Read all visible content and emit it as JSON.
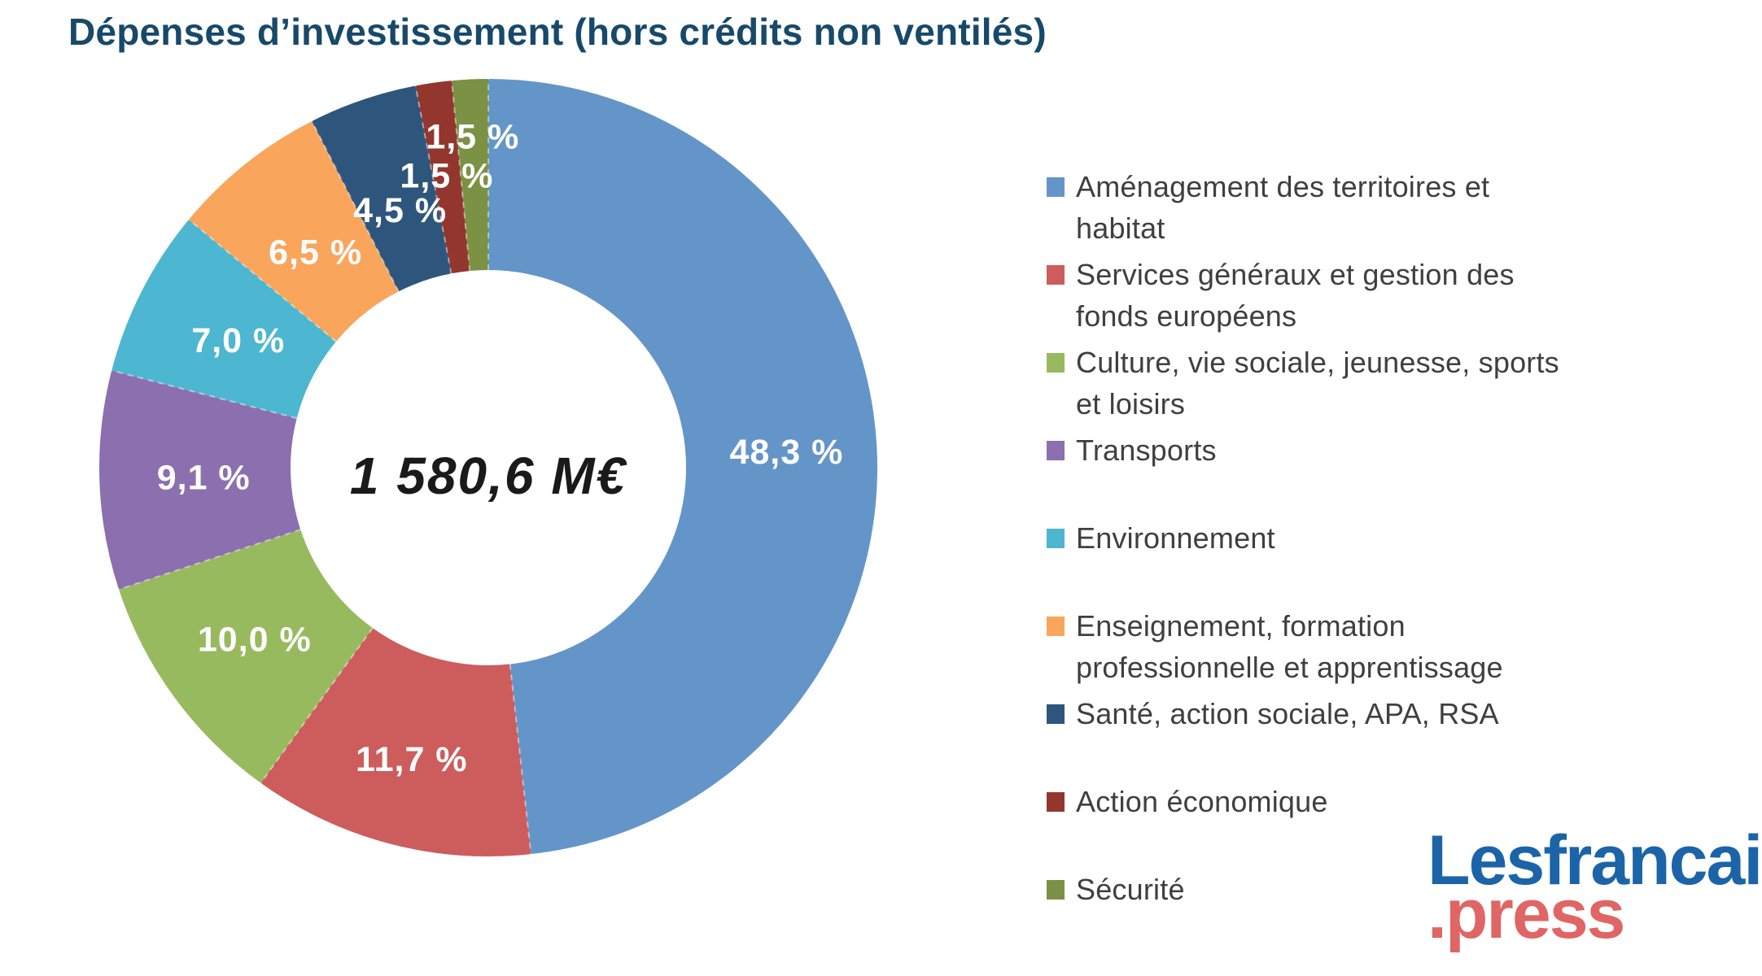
{
  "title": "Dépenses d’investissement (hors crédits non ventilés)",
  "chart_data": {
    "type": "pie",
    "subtype": "donut",
    "center_label": "1 580,6 M€",
    "unit": "%",
    "slices": [
      {
        "name": "Aménagement des territoires et habitat",
        "value": 48.3,
        "display": "48,3 %",
        "color": "#6495c8"
      },
      {
        "name": "Services généraux et gestion des fonds européens",
        "value": 11.7,
        "display": "11,7 %",
        "color": "#cd5c5c"
      },
      {
        "name": "Culture, vie sociale, jeunesse, sports et loisirs",
        "value": 10.0,
        "display": "10,0 %",
        "color": "#97ba5e"
      },
      {
        "name": "Transports",
        "value": 9.1,
        "display": "9,1 %",
        "color": "#8b6fae"
      },
      {
        "name": "Environnement",
        "value": 7.0,
        "display": "7,0 %",
        "color": "#4db6d0"
      },
      {
        "name": "Enseignement, formation professionnelle et apprentissage",
        "value": 6.5,
        "display": "6,5 %",
        "color": "#f9a55c"
      },
      {
        "name": "Santé, action sociale, APA, RSA",
        "value": 4.5,
        "display": "4,5 %",
        "color": "#2e567d"
      },
      {
        "name": "Action économique",
        "value": 1.5,
        "display": "1,5 %",
        "color": "#92362e"
      },
      {
        "name": "Sécurité",
        "value": 1.5,
        "display": "1,5 %",
        "color": "#7b9143"
      }
    ],
    "layout": {
      "start_angle_deg": 0,
      "direction": "clockwise",
      "center": [
        600,
        575
      ],
      "outer_radius": 478,
      "inner_radius": 243,
      "label_radii": [
        367,
        370,
        356,
        350,
        345,
        340,
        335,
        363,
        408
      ],
      "separator_style": "thin white dashed",
      "legend_position": "right",
      "grid": false
    }
  },
  "legend": {
    "items": [
      {
        "lines": [
          "Aménagement des territoires et",
          "habitat"
        ],
        "color": "#6495c8"
      },
      {
        "lines": [
          "Services généraux et gestion des",
          "fonds européens"
        ],
        "color": "#cd5c5c"
      },
      {
        "lines": [
          "Culture, vie sociale, jeunesse, sports",
          "et loisirs"
        ],
        "color": "#97ba5e"
      },
      {
        "lines": [
          "Transports"
        ],
        "color": "#8b6fae"
      },
      {
        "lines": [
          "Environnement"
        ],
        "color": "#4db6d0"
      },
      {
        "lines": [
          "Enseignement, formation",
          "professionnelle et apprentissage"
        ],
        "color": "#f9a55c"
      },
      {
        "lines": [
          "Santé, action sociale, APA, RSA"
        ],
        "color": "#2e567d"
      },
      {
        "lines": [
          "Action économique"
        ],
        "color": "#92362e"
      },
      {
        "lines": [
          "Sécurité"
        ],
        "color": "#7b9143"
      }
    ]
  },
  "logo": {
    "line1": "Lesfrancais",
    "line2": ".press",
    "line1_color": "#1b64a8",
    "line2_color": "#e06565"
  },
  "colors": {
    "background": "#ffffff",
    "title_text": "#17496a",
    "legend_text": "#3f3f3f",
    "center_text": "#1a1a1a",
    "slice_label_text": "#ffffff"
  }
}
